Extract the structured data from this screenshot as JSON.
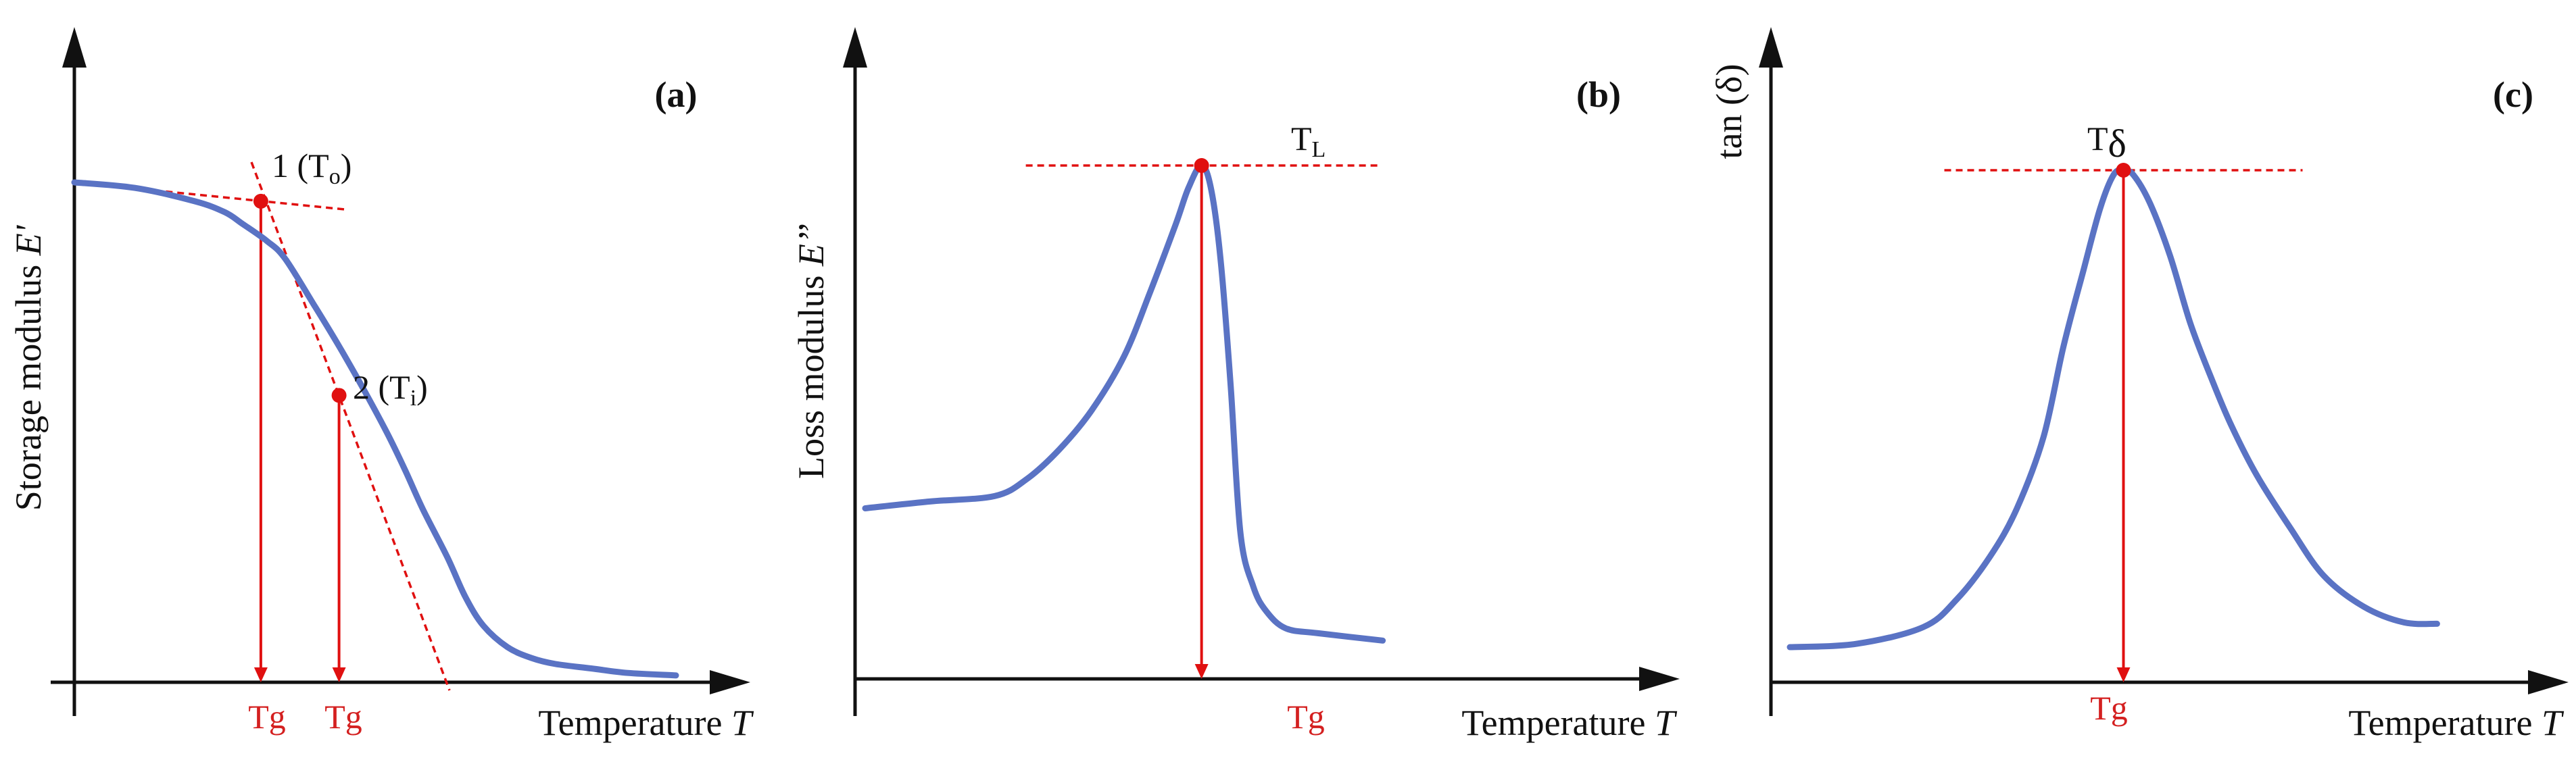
{
  "colors": {
    "curve": "#5a73c4",
    "marker": "#e01010",
    "guide": "#e01010",
    "tangent": "#e01010",
    "axis": "#111111",
    "tg_text": "#d42020"
  },
  "chart_data": [
    {
      "type": "line",
      "panel": "(a)",
      "xlabel": "Temperature ",
      "xlabel_var": "T",
      "ylabel": "Storage modulus ",
      "ylabel_var": "E'",
      "xlim": [
        0,
        100
      ],
      "ylim": [
        0,
        100
      ],
      "x": [
        0,
        10,
        20,
        25,
        28,
        32,
        35,
        40,
        44,
        48,
        52,
        55,
        58,
        62,
        65,
        68,
        72,
        76,
        80,
        86,
        92,
        100
      ],
      "y": [
        100,
        98.9,
        96.2,
        94.0,
        91.6,
        88.2,
        84.7,
        75.0,
        67.0,
        58.5,
        49.5,
        42.0,
        34.0,
        24.5,
        16.5,
        10.7,
        6.4,
        4.2,
        3.0,
        2.1,
        1.2,
        0.7
      ],
      "points": [
        {
          "label": "1 (T",
          "sub": "o",
          "close": ")",
          "x": 31,
          "y": 96.2
        },
        {
          "label": "2 (T",
          "sub": "i",
          "close": ")",
          "x": 44,
          "y": 57.1
        }
      ],
      "tg_labels": [
        "Tg",
        "Tg"
      ]
    },
    {
      "type": "line",
      "panel": "(b)",
      "xlabel": "Temperature ",
      "xlabel_var": "T",
      "ylabel": "Loss modulus ",
      "ylabel_var": "E’’",
      "xlim": [
        0,
        100
      ],
      "ylim": [
        0,
        100
      ],
      "x": [
        0,
        10,
        20,
        25,
        30,
        35,
        40,
        44,
        48,
        50,
        52,
        53.5,
        55,
        56.5,
        58,
        60,
        62,
        65,
        70,
        80
      ],
      "y": [
        30,
        31.4,
        32.5,
        36.0,
        42.0,
        50.0,
        61.0,
        74.0,
        88.0,
        95.5,
        100,
        95.0,
        80.0,
        55.0,
        25.0,
        14.0,
        9.0,
        5.5,
        4.5,
        3.0
      ],
      "points": [
        {
          "label": "T",
          "sub": "L",
          "close": "",
          "x": 52,
          "y": 100
        }
      ],
      "tg_labels": [
        "Tg"
      ]
    },
    {
      "type": "line",
      "panel": "(c)",
      "xlabel": "Temperature ",
      "xlabel_var": "T",
      "ylabel": "tan (δ)",
      "ylabel_var": "",
      "xlim": [
        0,
        100
      ],
      "ylim": [
        0,
        100
      ],
      "x": [
        0,
        10,
        20,
        25,
        30,
        34,
        38,
        41,
        44,
        46.5,
        48.5,
        50,
        51.5,
        54,
        57,
        60,
        63,
        66,
        70,
        75,
        80,
        86,
        92,
        97
      ],
      "y": [
        0,
        0.7,
        4.2,
        10.0,
        19.0,
        29.0,
        44.0,
        63.0,
        79.0,
        92.0,
        99.0,
        100,
        99.0,
        93.0,
        82.0,
        68.0,
        57.0,
        47.0,
        36.0,
        25.0,
        15.0,
        8.5,
        5.2,
        4.9
      ],
      "points": [
        {
          "label": "T",
          "sub": "",
          "close": "δ",
          "x": 50,
          "y": 100
        }
      ],
      "tg_labels": [
        "Tg"
      ]
    }
  ]
}
